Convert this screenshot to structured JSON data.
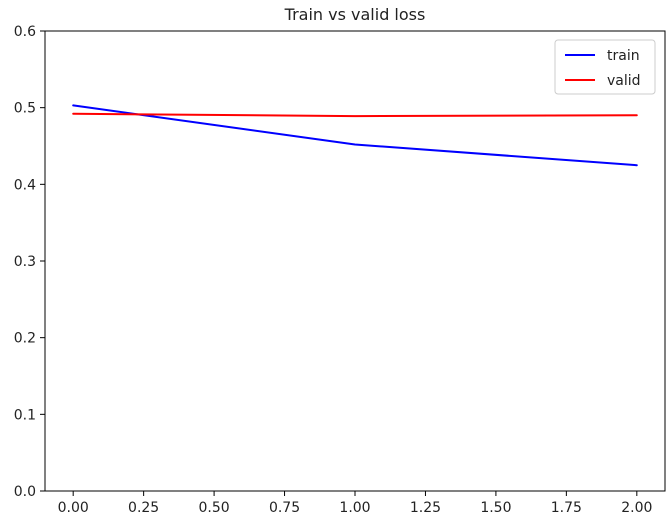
{
  "chart_data": {
    "type": "line",
    "title": "Train vs valid loss",
    "xlabel": "",
    "ylabel": "",
    "xlim": [
      -0.1,
      2.1
    ],
    "ylim": [
      0.0,
      0.6
    ],
    "xticks": [
      "0.00",
      "0.25",
      "0.50",
      "0.75",
      "1.00",
      "1.25",
      "1.50",
      "1.75",
      "2.00"
    ],
    "yticks": [
      "0.0",
      "0.1",
      "0.2",
      "0.3",
      "0.4",
      "0.5",
      "0.6"
    ],
    "x": [
      0,
      1,
      2
    ],
    "series": [
      {
        "name": "train",
        "color": "#0000ff",
        "values": [
          0.503,
          0.452,
          0.425
        ]
      },
      {
        "name": "valid",
        "color": "#ff0000",
        "values": [
          0.492,
          0.489,
          0.49
        ]
      }
    ],
    "legend": "top-right",
    "grid": false
  }
}
